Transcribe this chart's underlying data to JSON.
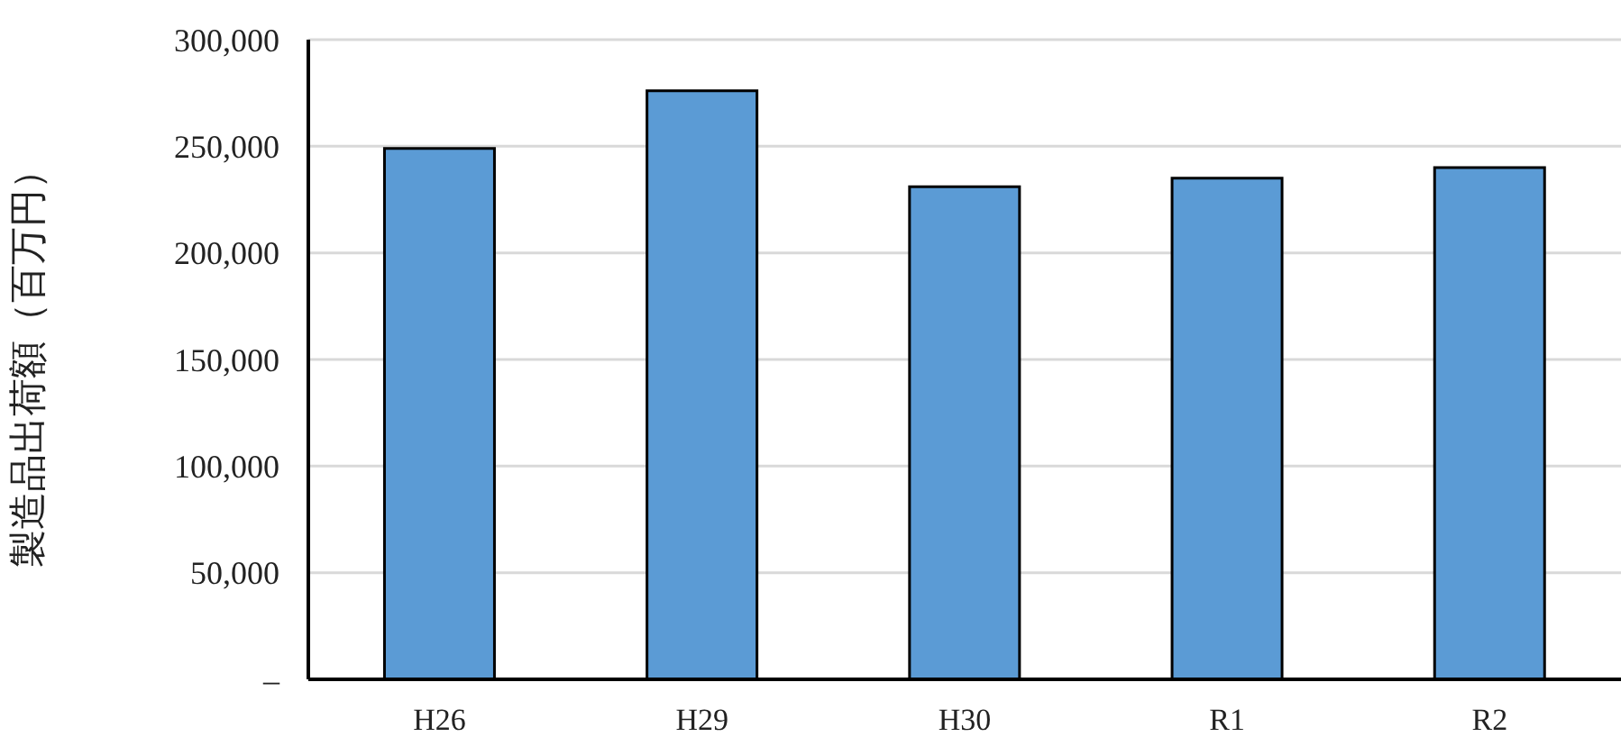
{
  "chart_data": {
    "type": "bar",
    "ylabel": "製造品出荷額（百万円）",
    "categories": [
      "H26",
      "H29",
      "H30",
      "R1",
      "R2"
    ],
    "values": [
      249000,
      276000,
      231000,
      235000,
      240000
    ],
    "color": "#5b9bd5",
    "ylim": [
      0,
      300000
    ],
    "yticks": [
      {
        "value": 0,
        "label": "–"
      },
      {
        "value": 50000,
        "label": "50,000"
      },
      {
        "value": 100000,
        "label": "100,000"
      },
      {
        "value": 150000,
        "label": "150,000"
      },
      {
        "value": 200000,
        "label": "200,000"
      },
      {
        "value": 250000,
        "label": "250,000"
      },
      {
        "value": 300000,
        "label": "300,000"
      }
    ],
    "grid": "y"
  }
}
